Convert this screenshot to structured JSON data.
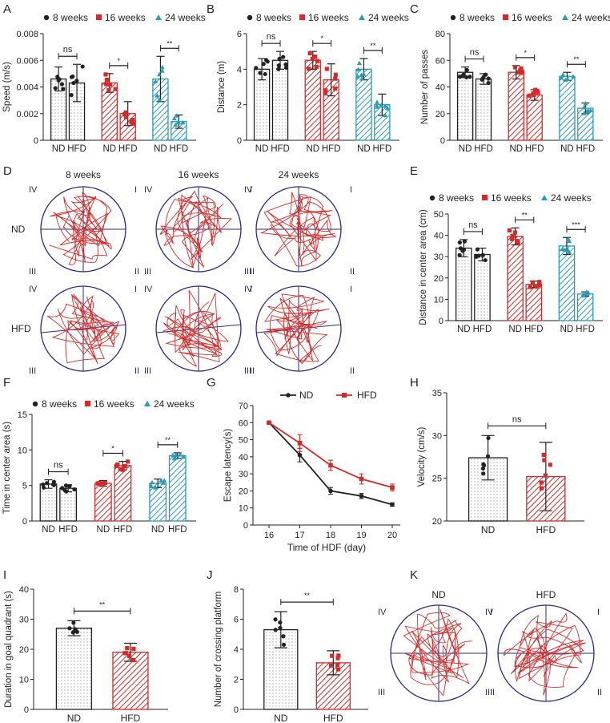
{
  "colors": {
    "nd": "#222222",
    "w16": "#d42a2a",
    "w24": "#2a9bb5",
    "track": "#d42a2a",
    "pool": "#2b2b7a"
  },
  "panels": {
    "A": {
      "letter": "A",
      "ylabel": "Speed (m/s)"
    },
    "B": {
      "letter": "B",
      "ylabel": "Distance (m)"
    },
    "C": {
      "letter": "C",
      "ylabel": "Number of passes"
    },
    "D": {
      "letter": "D"
    },
    "E": {
      "letter": "E",
      "ylabel": "Distance in center area (cm)"
    },
    "F": {
      "letter": "F",
      "ylabel": "Time in center area (s)"
    },
    "G": {
      "letter": "G"
    },
    "H": {
      "letter": "H",
      "ylabel": "Velocity (cm/s)"
    },
    "I": {
      "letter": "I",
      "ylabel": "Duration in goal quadrant (s)"
    },
    "J": {
      "letter": "J",
      "ylabel": "Number of crossing platform"
    },
    "K": {
      "letter": "K"
    }
  },
  "legend": {
    "w8": "8 weeks",
    "w16": "16 weeks",
    "w24": "24 weeks"
  },
  "track_labels": {
    "cols": [
      "8 weeks",
      "16 weeks",
      "24 weeks"
    ],
    "rows": [
      "ND",
      "HFD"
    ],
    "quadrants": [
      "IV",
      "I",
      "III",
      "II"
    ],
    "k_titles": [
      "ND",
      "HFD"
    ]
  },
  "chart_data": [
    {
      "id": "A",
      "type": "bar",
      "ylabel": "Speed (m/s)",
      "ylim": [
        0,
        0.008
      ],
      "yticks": [
        "0",
        "0.002",
        "0.004",
        "0.006",
        "0.008"
      ],
      "categories": [
        "ND",
        "HFD",
        "ND",
        "HFD",
        "ND",
        "HFD"
      ],
      "groups": [
        "8 weeks",
        "16 weeks",
        "24 weeks"
      ],
      "values": [
        0.0046,
        0.0043,
        0.0043,
        0.002,
        0.0046,
        0.0014
      ],
      "errors": [
        0.0009,
        0.0014,
        0.0007,
        0.0009,
        0.0017,
        0.0005
      ],
      "significance": [
        "ns",
        "*",
        "**"
      ]
    },
    {
      "id": "B",
      "type": "bar",
      "ylabel": "Distance (m)",
      "ylim": [
        0,
        6
      ],
      "yticks": [
        "0",
        "2",
        "4",
        "6"
      ],
      "categories": [
        "ND",
        "HFD",
        "ND",
        "HFD",
        "ND",
        "HFD"
      ],
      "groups": [
        "8 weeks",
        "16 weeks",
        "24 weeks"
      ],
      "values": [
        4.0,
        4.5,
        4.5,
        3.4,
        4.0,
        2.0
      ],
      "errors": [
        0.6,
        0.5,
        0.5,
        0.9,
        0.6,
        0.6
      ],
      "significance": [
        "ns",
        "*",
        "**"
      ]
    },
    {
      "id": "C",
      "type": "bar",
      "ylabel": "Number of passes",
      "ylim": [
        0,
        80
      ],
      "yticks": [
        "0",
        "20",
        "40",
        "60",
        "80"
      ],
      "categories": [
        "ND",
        "HFD",
        "ND",
        "HFD",
        "ND",
        "HFD"
      ],
      "groups": [
        "8 weeks",
        "16 weeks",
        "24 weeks"
      ],
      "values": [
        51,
        46,
        51,
        34,
        48,
        24
      ],
      "errors": [
        4,
        4,
        5,
        4,
        3,
        4
      ],
      "significance": [
        "ns",
        "*",
        "**"
      ]
    },
    {
      "id": "E",
      "type": "bar",
      "ylabel": "Distance in center area (cm)",
      "ylim": [
        0,
        50
      ],
      "yticks": [
        "0",
        "10",
        "20",
        "30",
        "40",
        "50"
      ],
      "categories": [
        "ND",
        "HFD",
        "ND",
        "HFD",
        "ND",
        "HFD"
      ],
      "groups": [
        "8 weeks",
        "16 weeks",
        "24 weeks"
      ],
      "values": [
        34,
        31,
        39.5,
        17,
        35,
        12.5
      ],
      "errors": [
        4,
        3,
        4,
        1.5,
        4,
        1
      ],
      "significance": [
        "ns",
        "**",
        "***"
      ]
    },
    {
      "id": "F",
      "type": "bar",
      "ylabel": "Time in center area (s)",
      "ylim": [
        0,
        15
      ],
      "yticks": [
        "0",
        "5",
        "10",
        "15"
      ],
      "categories": [
        "ND",
        "HFD",
        "ND",
        "HFD",
        "ND",
        "HFD"
      ],
      "groups": [
        "8 weeks",
        "16 weeks",
        "24 weeks"
      ],
      "values": [
        5.2,
        4.6,
        5.3,
        7.8,
        5.3,
        9.2
      ],
      "errors": [
        0.6,
        0.5,
        0.4,
        0.6,
        0.6,
        0.4
      ],
      "significance": [
        "ns",
        "*",
        "**"
      ]
    },
    {
      "id": "G",
      "type": "line",
      "xlabel": "Time of HDF (day)",
      "ylabel": "Escape latency(s)",
      "x": [
        16,
        17,
        18,
        19,
        20
      ],
      "ylim": [
        0,
        70
      ],
      "yticks": [
        "0",
        "10",
        "20",
        "30",
        "40",
        "50",
        "60",
        "70"
      ],
      "xticks": [
        "16",
        "17",
        "18",
        "19",
        "20"
      ],
      "series": [
        {
          "name": "ND",
          "values": [
            60,
            41,
            20,
            17,
            12
          ],
          "errors": [
            0.5,
            4,
            2,
            1.5,
            1
          ]
        },
        {
          "name": "HFD",
          "values": [
            60,
            48,
            35,
            27,
            22
          ],
          "errors": [
            0.5,
            5,
            3,
            3,
            2
          ]
        }
      ]
    },
    {
      "id": "H",
      "type": "bar",
      "ylabel": "Velocity (cm/s)",
      "ylim": [
        20,
        35
      ],
      "yticks": [
        "20",
        "25",
        "30",
        "35"
      ],
      "categories": [
        "ND",
        "HFD"
      ],
      "values": [
        27.4,
        25.2
      ],
      "errors": [
        2.6,
        4.0
      ],
      "significance": [
        "ns"
      ]
    },
    {
      "id": "I",
      "type": "bar",
      "ylabel": "Duration in goal quadrant (s)",
      "ylim": [
        0,
        40
      ],
      "yticks": [
        "0",
        "10",
        "20",
        "30",
        "40"
      ],
      "categories": [
        "ND",
        "HFD"
      ],
      "values": [
        27,
        19
      ],
      "errors": [
        2.5,
        3
      ],
      "significance": [
        "**"
      ]
    },
    {
      "id": "J",
      "type": "bar",
      "ylabel": "Number of crossing platform",
      "ylim": [
        0,
        8
      ],
      "yticks": [
        "0",
        "2",
        "4",
        "6",
        "8"
      ],
      "categories": [
        "ND",
        "HFD"
      ],
      "values": [
        5.3,
        3.1
      ],
      "errors": [
        1.2,
        0.8
      ],
      "significance": [
        "**"
      ]
    }
  ]
}
